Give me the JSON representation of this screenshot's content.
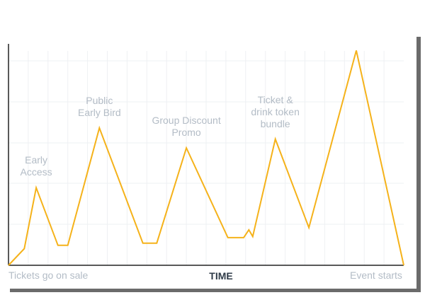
{
  "chart_data": {
    "type": "line",
    "title": "",
    "xlabel": "TIME",
    "ylabel": "",
    "x_tick_labels": {
      "start": "Tickets go on sale",
      "end": "Event starts"
    },
    "grid": true,
    "legend": "none",
    "colors": {
      "line": "#f5b21a",
      "grid": "#eef0f3",
      "axis": "#222222",
      "annotation": "#b3bcc6",
      "axis_title": "#2f3b48",
      "frame_shadow": "#6b6b6b"
    },
    "xlim": [
      0,
      100
    ],
    "ylim": [
      0,
      100
    ],
    "series": [
      {
        "x": [
          0,
          4,
          7,
          12.5,
          15,
          23,
          34,
          37.5,
          45,
          55.5,
          59.5,
          60.8,
          61.8,
          67.5,
          76,
          88,
          100
        ],
        "y": [
          0,
          7.5,
          35,
          9,
          9,
          62,
          10,
          10,
          53,
          12.5,
          12.5,
          16,
          13,
          57,
          17,
          97,
          0
        ]
      }
    ],
    "annotations": [
      {
        "text": "Early\nAccess",
        "x": 7,
        "y": 35
      },
      {
        "text": "Public\nEarly Bird",
        "x": 23,
        "y": 62
      },
      {
        "text": "Group Discount\nPromo",
        "x": 45,
        "y": 53
      },
      {
        "text": "Ticket &\ndrink token\nbundle",
        "x": 67.5,
        "y": 57
      }
    ]
  }
}
